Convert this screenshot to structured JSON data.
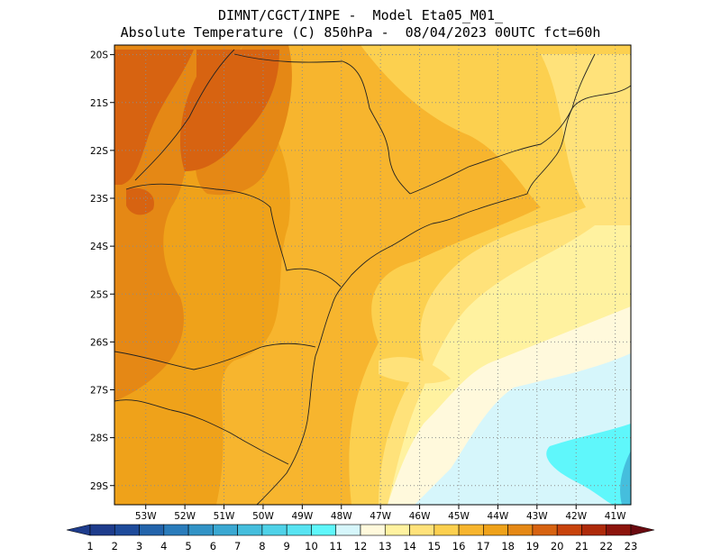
{
  "title": {
    "line1": "DIMNT/CGCT/INPE -  Model Eta05_M01_",
    "line2": "Absolute Temperature (C) 850hPa -  08/04/2023 00UTC fct=60h"
  },
  "map": {
    "lon_range": [
      -53.8,
      -40.6
    ],
    "lat_range": [
      -29.4,
      -19.8
    ],
    "lon_ticks": [
      "53W",
      "52W",
      "51W",
      "50W",
      "49W",
      "48W",
      "47W",
      "46W",
      "45W",
      "44W",
      "43W",
      "42W",
      "41W"
    ],
    "lat_ticks": [
      "20S",
      "21S",
      "22S",
      "23S",
      "24S",
      "25S",
      "26S",
      "27S",
      "28S",
      "29S"
    ],
    "grid_style": "dotted"
  },
  "colorbar": {
    "labels": [
      "1",
      "2",
      "3",
      "4",
      "5",
      "6",
      "7",
      "8",
      "9",
      "10",
      "11",
      "12",
      "13",
      "14",
      "15",
      "16",
      "17",
      "18",
      "19",
      "20",
      "21",
      "22",
      "23"
    ],
    "colors": [
      "#1e3c8c",
      "#1e4b9b",
      "#2364ab",
      "#2a7cbb",
      "#3293c6",
      "#3aa8d2",
      "#45bedd",
      "#4fd2e8",
      "#58e4f2",
      "#5ff7fb",
      "#d6f6fb",
      "#fff9dc",
      "#fff2a0",
      "#ffe27a",
      "#fcd04f",
      "#f7b52e",
      "#efa21a",
      "#e58815",
      "#d76311",
      "#c8430c",
      "#ae2a0a",
      "#8c140c",
      "#6a0a10"
    ]
  }
}
